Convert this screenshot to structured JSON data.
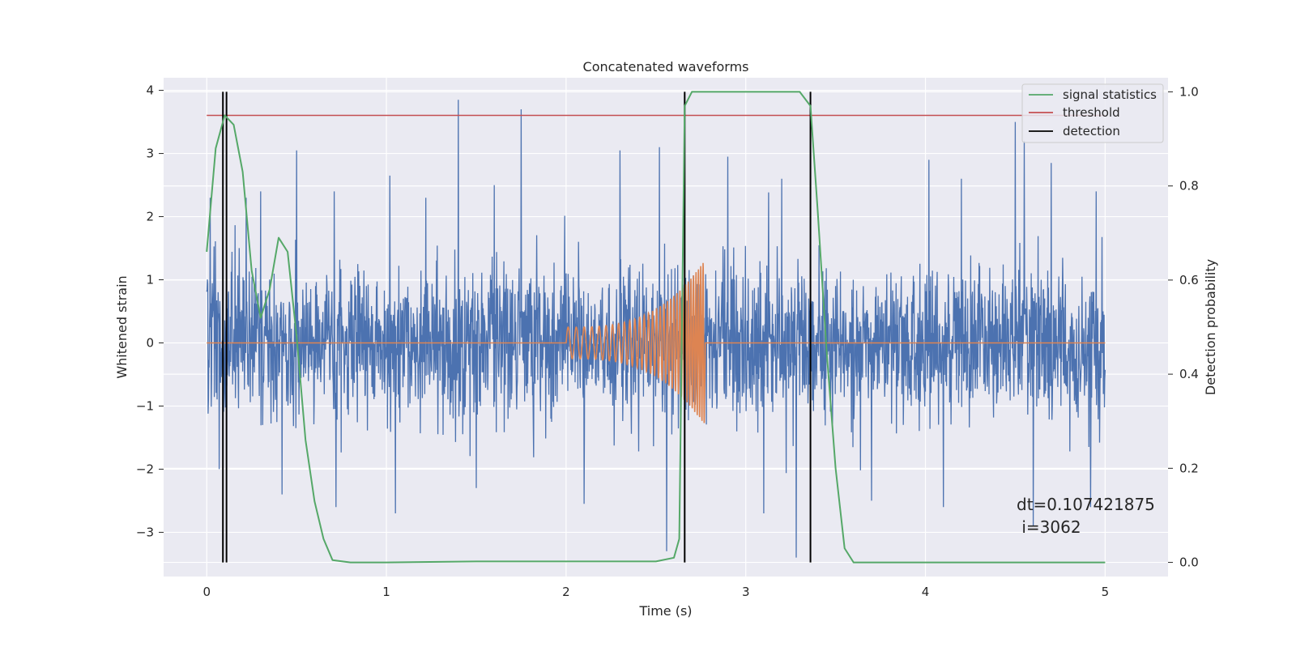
{
  "chart_data": {
    "type": "line",
    "title": "Concatenated waveforms",
    "xlabel": "Time (s)",
    "ylabel": "Whitened strain",
    "y2label": "Detection probability",
    "xlim": [
      -0.24,
      5.35
    ],
    "ylim": [
      -3.7,
      4.2
    ],
    "y2lim": [
      -0.03,
      1.03
    ],
    "xticks": [
      0,
      1,
      2,
      3,
      4,
      5
    ],
    "yticks": [
      -3,
      -2,
      -1,
      0,
      1,
      2,
      3,
      4
    ],
    "y2ticks": [
      0.0,
      0.2,
      0.4,
      0.6,
      0.8,
      1.0
    ],
    "xtick_labels": [
      "0",
      "1",
      "2",
      "3",
      "4",
      "5"
    ],
    "ytick_labels": [
      "−3",
      "−2",
      "−1",
      "0",
      "1",
      "2",
      "3",
      "4"
    ],
    "y2tick_labels": [
      "0.0",
      "0.2",
      "0.4",
      "0.6",
      "0.8",
      "1.0"
    ],
    "grid": true,
    "legend_position": "top-right",
    "colors": {
      "strain": "#4c72b0",
      "injected": "#dd8452",
      "signal_statistics": "#55a868",
      "threshold": "#c44e52",
      "detection": "#000000",
      "background": "#eaeaf2",
      "grid": "#ffffff"
    },
    "series": [
      {
        "name": "signal statistics",
        "axis": "right",
        "x": [
          0.0,
          0.05,
          0.1,
          0.15,
          0.2,
          0.25,
          0.3,
          0.35,
          0.4,
          0.45,
          0.5,
          0.55,
          0.6,
          0.65,
          0.7,
          0.8,
          1.0,
          1.5,
          2.0,
          2.5,
          2.6,
          2.63,
          2.66,
          2.7,
          3.0,
          3.3,
          3.36,
          3.4,
          3.45,
          3.5,
          3.55,
          3.6,
          4.0,
          4.5,
          5.0
        ],
        "y": [
          0.66,
          0.88,
          0.95,
          0.93,
          0.83,
          0.62,
          0.52,
          0.58,
          0.69,
          0.66,
          0.48,
          0.26,
          0.13,
          0.05,
          0.005,
          0.0,
          0.0,
          0.002,
          0.002,
          0.002,
          0.01,
          0.05,
          0.97,
          1.0,
          1.0,
          1.0,
          0.97,
          0.75,
          0.45,
          0.2,
          0.03,
          0.0,
          0.0,
          0.0,
          0.0
        ]
      },
      {
        "name": "threshold",
        "axis": "right",
        "x": [
          0.0,
          5.0
        ],
        "y": [
          0.95,
          0.95
        ]
      },
      {
        "name": "detection",
        "axis": "right",
        "x_positions": [
          0.09,
          0.11,
          2.66,
          3.36
        ],
        "ylim": [
          0.0,
          1.0
        ]
      },
      {
        "axis": "left",
        "description_role": "strain",
        "x_range": [
          0.0,
          5.0
        ],
        "envelope": [
          -1.8,
          1.8
        ],
        "spikes": [
          {
            "x": 0.02,
            "y": 2.3
          },
          {
            "x": 0.07,
            "y": -2.0
          },
          {
            "x": 0.22,
            "y": 2.3
          },
          {
            "x": 0.3,
            "y": 2.4
          },
          {
            "x": 0.5,
            "y": 3.05
          },
          {
            "x": 0.42,
            "y": -2.4
          },
          {
            "x": 0.71,
            "y": 2.4
          },
          {
            "x": 1.02,
            "y": 2.65
          },
          {
            "x": 1.22,
            "y": 2.3
          },
          {
            "x": 1.4,
            "y": 3.85
          },
          {
            "x": 1.6,
            "y": 2.5
          },
          {
            "x": 1.75,
            "y": 3.7
          },
          {
            "x": 2.3,
            "y": 3.05
          },
          {
            "x": 2.52,
            "y": 3.1
          },
          {
            "x": 2.56,
            "y": -3.3
          },
          {
            "x": 2.9,
            "y": 2.95
          },
          {
            "x": 3.2,
            "y": 2.6
          },
          {
            "x": 3.28,
            "y": -3.4
          },
          {
            "x": 4.02,
            "y": 2.9
          },
          {
            "x": 4.2,
            "y": 2.6
          },
          {
            "x": 4.5,
            "y": 3.5
          },
          {
            "x": 4.55,
            "y": 3.2
          },
          {
            "x": 4.7,
            "y": 2.85
          },
          {
            "x": 4.95,
            "y": 2.4
          },
          {
            "x": 0.72,
            "y": -2.6
          },
          {
            "x": 1.05,
            "y": -2.7
          },
          {
            "x": 1.5,
            "y": -2.3
          },
          {
            "x": 2.1,
            "y": -2.55
          },
          {
            "x": 3.1,
            "y": -2.7
          },
          {
            "x": 3.7,
            "y": -2.5
          },
          {
            "x": 4.1,
            "y": -2.6
          },
          {
            "x": 4.6,
            "y": -2.9
          },
          {
            "x": 4.92,
            "y": -2.6
          }
        ]
      },
      {
        "axis": "left",
        "description_role": "injected",
        "x_range": [
          0.0,
          5.0
        ],
        "chirp_start": 2.0,
        "chirp_end": 2.77,
        "start_amplitude": 0.25,
        "peak_amplitude": 1.3,
        "start_frequency": 22,
        "end_frequency": 80
      }
    ]
  },
  "annotation": {
    "line1": "dt=0.107421875",
    "line2": " i=3062"
  },
  "legend": [
    {
      "label": "signal statistics",
      "color": "#55a868"
    },
    {
      "label": "threshold",
      "color": "#c44e52"
    },
    {
      "label": "detection",
      "color": "#000000"
    }
  ]
}
